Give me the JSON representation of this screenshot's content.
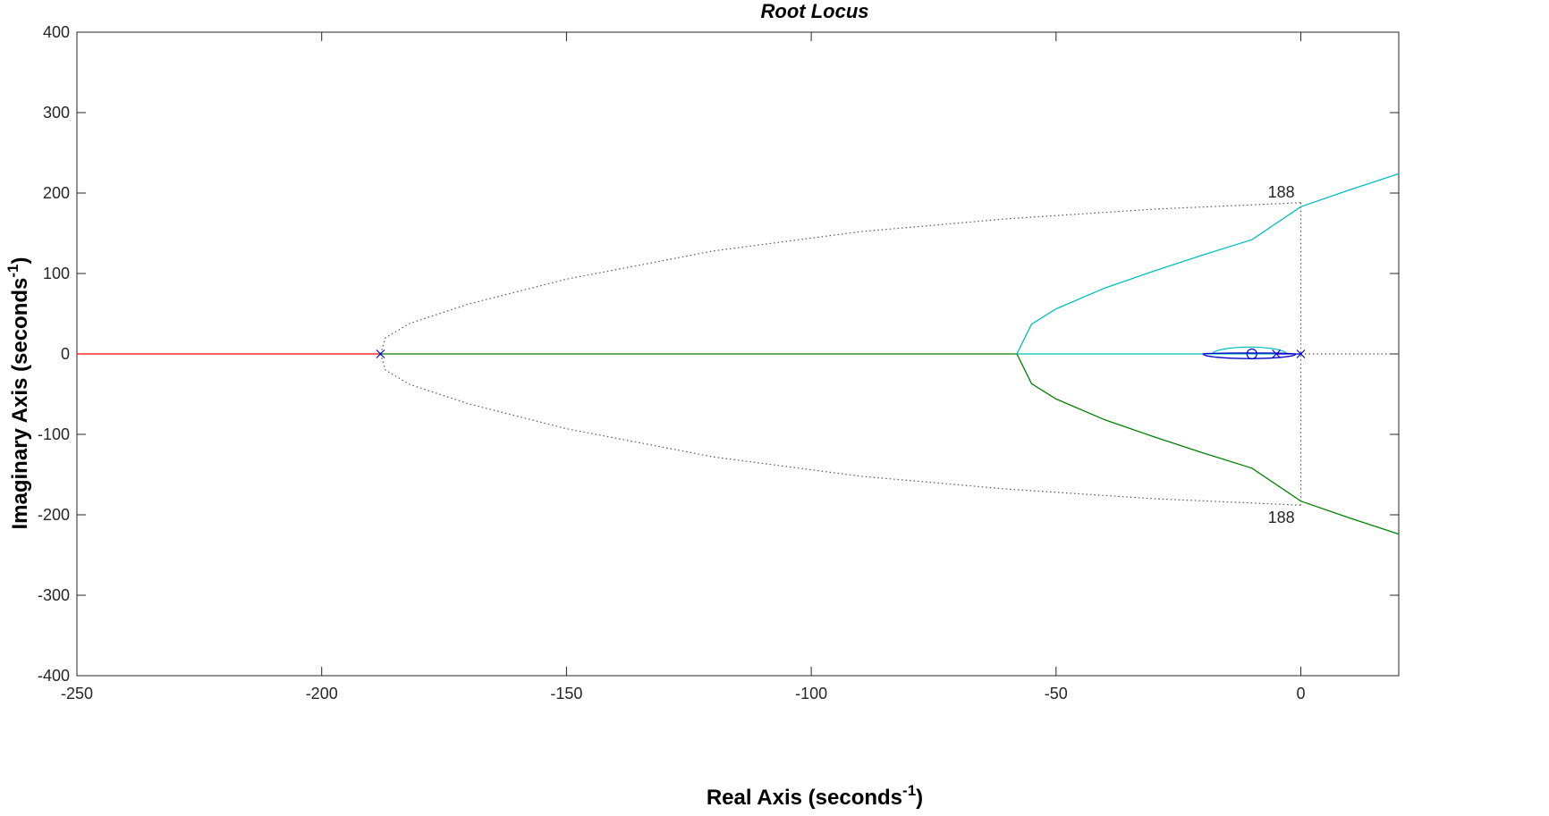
{
  "chart_data": {
    "type": "line",
    "title": "Root Locus",
    "xlabel": "Real Axis (seconds",
    "ylabel": "Imaginary Axis (seconds",
    "unit_exponent": "-1",
    "label_suffix": ")",
    "xlim": [
      -250,
      20
    ],
    "ylim": [
      -400,
      400
    ],
    "xticks": [
      -250,
      -200,
      -150,
      -100,
      -50,
      0
    ],
    "yticks": [
      -400,
      -300,
      -200,
      -100,
      0,
      100,
      200,
      300,
      400
    ],
    "grid": false,
    "poles": [
      [
        0,
        0
      ],
      [
        -5,
        0
      ],
      [
        -188,
        0
      ]
    ],
    "zeros": [
      [
        -10,
        0
      ]
    ],
    "series": [
      {
        "color": "#ff0000",
        "points": [
          [
            -188,
            0
          ],
          [
            -250,
            0
          ]
        ]
      },
      {
        "color": "#008000",
        "points": [
          [
            -188,
            0
          ],
          [
            -58,
            0
          ],
          [
            -55,
            -37
          ],
          [
            -50,
            -56
          ],
          [
            -40,
            -82
          ],
          [
            -30,
            -103
          ],
          [
            -20,
            -123
          ],
          [
            -10,
            -142
          ],
          [
            0,
            -183
          ],
          [
            10,
            -204
          ],
          [
            20,
            -224
          ]
        ]
      },
      {
        "color": "#00bfbf",
        "points": [
          [
            -58,
            0
          ],
          [
            -55,
            37
          ],
          [
            -50,
            56
          ],
          [
            -40,
            82
          ],
          [
            -30,
            103
          ],
          [
            -20,
            123
          ],
          [
            -10,
            142
          ],
          [
            0,
            183
          ],
          [
            10,
            204
          ],
          [
            20,
            224
          ]
        ]
      },
      {
        "color": "#00bfbf",
        "points": [
          [
            -58,
            0
          ],
          [
            -5,
            0
          ]
        ]
      },
      {
        "color": "#0000cc",
        "points": [
          [
            0,
            0
          ],
          [
            -5,
            0
          ]
        ]
      }
    ],
    "loops": [
      {
        "color": "#0000cc",
        "center": [
          -10.5,
          0
        ],
        "rx": 9.5,
        "ry": 5.8,
        "half": "lower"
      },
      {
        "color": "#00bfbf",
        "center": [
          -10.5,
          0
        ],
        "rx": 7.5,
        "ry": 8.5,
        "half": "upper"
      },
      {
        "color": "#0000cc",
        "center": [
          -10.5,
          0
        ],
        "rx": 9.5,
        "ry": 1.2,
        "half": "upper"
      }
    ],
    "asymptote_dotted": {
      "color": "#555555",
      "branch_upper": [
        [
          -188,
          0
        ],
        [
          -187,
          20
        ],
        [
          -182,
          38
        ],
        [
          -170,
          62
        ],
        [
          -150,
          93
        ],
        [
          -120,
          128
        ],
        [
          -90,
          152
        ],
        [
          -60,
          168
        ],
        [
          -30,
          180
        ],
        [
          0,
          188
        ]
      ],
      "vertical_x": 0,
      "vertical_y": [
        -188,
        188
      ],
      "real_axis": [
        [
          0,
          0
        ],
        [
          20,
          0
        ]
      ]
    },
    "annotations": [
      {
        "text": "188",
        "x": -4,
        "y": 188,
        "pos": "above"
      },
      {
        "text": "188",
        "x": -4,
        "y": -188,
        "pos": "below"
      }
    ]
  }
}
